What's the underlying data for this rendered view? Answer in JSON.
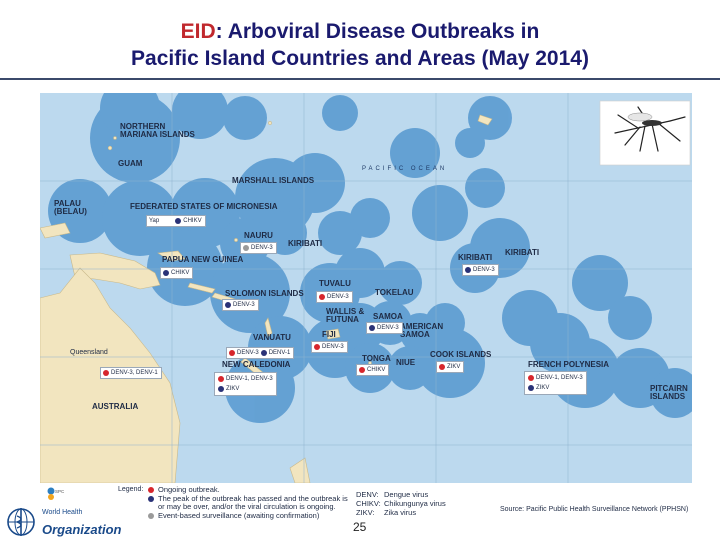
{
  "title": {
    "accent": "EID",
    "line1_rest": ": Arboviral Disease Outbreaks in",
    "line2": "Pacific Island Countries and Areas (May 2014)"
  },
  "map": {
    "ocean_label": "PACIFIC OCEAN",
    "regions": {
      "northern_mariana_1": "NORTHERN",
      "northern_mariana_2": "MARIANA ISLANDS",
      "guam": "GUAM",
      "marshall": "MARSHALL ISLANDS",
      "palau_1": "PALAU",
      "palau_2": "(BELAU)",
      "fsm": "FEDERATED STATES OF MICRONESIA",
      "nauru": "NAURU",
      "kiribati_w": "KIRIBATI",
      "kiribati_c": "KIRIBATI",
      "kiribati_e": "KIRIBATI",
      "png": "PAPUA NEW GUINEA",
      "solomon": "SOLOMON ISLANDS",
      "tuvalu": "TUVALU",
      "tokelau": "TOKELAU",
      "wallis_1": "WALLIS &",
      "wallis_2": "FUTUNA",
      "samoa": "SAMOA",
      "am_samoa_1": "AMERICAN",
      "am_samoa_2": "SAMOA",
      "vanuatu": "VANUATU",
      "fiji": "FIJI",
      "tonga": "TONGA",
      "niue": "NIUE",
      "cook": "COOK ISLANDS",
      "new_caledonia": "NEW CALEDONIA",
      "french_polynesia": "FRENCH POLYNESIA",
      "pitcairn_1": "PITCAIRN",
      "pitcairn_2": "ISLANDS",
      "queensland": "Queensland",
      "australia": "AUSTRALIA"
    },
    "tags": {
      "yap": "Yap",
      "fsm_chikv": "CHIKV",
      "nauru_denv": "DENV-3",
      "kiribati_denv": "DENV-3",
      "png_chikv": "CHIKV",
      "solomon_denv": "DENV-3",
      "tuvalu_denv": "DENV-3",
      "wallis_denv": "DENV-3",
      "vanuatu_denv3": "DENV-3",
      "vanuatu_denv1": "DENV-1",
      "fiji_denv": "DENV-3",
      "nc_1": "DENV-1, DENV-3",
      "nc_2": "ZIKV",
      "tonga_chikv": "CHIKV",
      "cook_zikv": "ZIKV",
      "fp_1": "DENV-1, DENV-3",
      "fp_2": "ZIKV",
      "qld_denv": "DENV-3, DENV-1"
    }
  },
  "legend": {
    "title": "Legend:",
    "items": [
      "Ongoing outbreak.",
      "The peak of the outbreak has passed and the outbreak is or may be over, and/or the viral circulation is ongoing.",
      "Event-based surveillance (awaiting confirmation)"
    ],
    "colors": {
      "ongoing": "#d7262c",
      "past_peak": "#2a3277",
      "awaiting": "#9a9a9a"
    }
  },
  "abbreviations": [
    {
      "key": "DENV:",
      "value": "Dengue virus"
    },
    {
      "key": "CHIKV:",
      "value": "Chikungunya virus"
    },
    {
      "key": "ZIKV:",
      "value": "Zika virus"
    }
  ],
  "source": "Source: Pacific Public Health Surveillance Network (PPHSN)",
  "page_number": "25",
  "logos": {
    "spc": "SPC",
    "who": "Organization",
    "who_top": "World Health"
  }
}
